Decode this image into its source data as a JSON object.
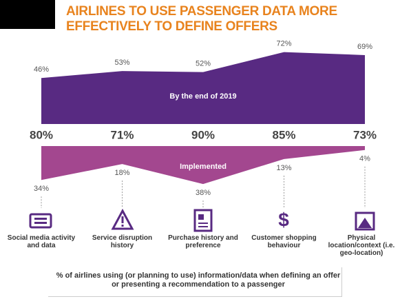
{
  "chart_data": {
    "type": "mirrored-area",
    "title": "AIRLINES TO USE PASSENGER DATA MORE EFFECTIVELY TO DEFINE OFFERS",
    "categories": [
      "Social media activity and data",
      "Service disruption history",
      "Purchase history and preference",
      "Customer shopping behaviour",
      "Physical location/context (i.e. geo-location)"
    ],
    "series": [
      {
        "name": "By the end of 2019",
        "color": "#582a82",
        "values": [
          46,
          53,
          52,
          72,
          69
        ],
        "value_labels": [
          "46%",
          "53%",
          "52%",
          "72%",
          "69%"
        ]
      },
      {
        "name": "Implemented",
        "color": "#a3478f",
        "values": [
          34,
          18,
          38,
          13,
          4
        ],
        "value_labels": [
          "34%",
          "18%",
          "38%",
          "13%",
          "4%"
        ]
      }
    ],
    "totals": {
      "values": [
        80,
        71,
        90,
        85,
        73
      ],
      "value_labels": [
        "80%",
        "71%",
        "90%",
        "85%",
        "73%"
      ]
    },
    "footnote": "% of airlines using (or planning to use) information/data when defining an offer or presenting a recommendation to a passenger"
  }
}
